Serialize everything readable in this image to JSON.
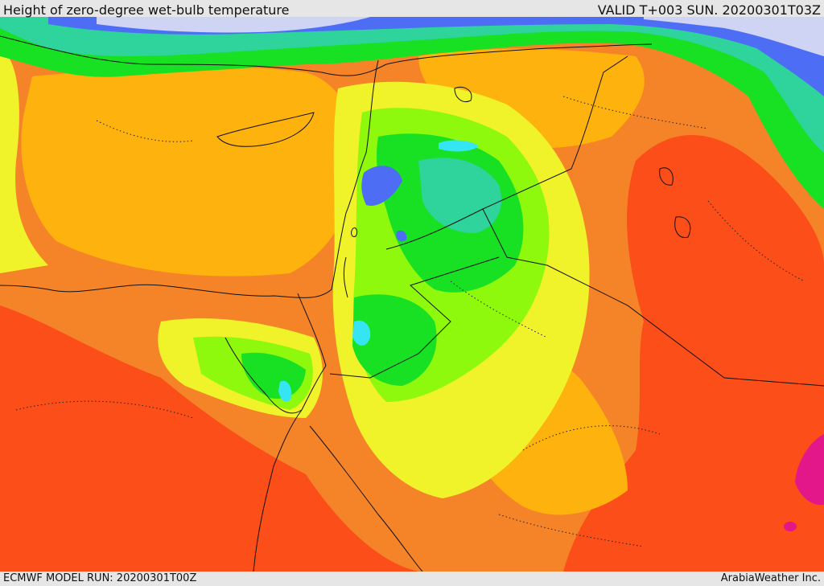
{
  "header": {
    "title": "Height of zero-degree wet-bulb temperature",
    "valid": "VALID T+003 SUN. 20200301T03Z"
  },
  "footer": {
    "model_run": "ECMWF MODEL RUN: 20200301T00Z",
    "credit": "ArabiaWeather Inc."
  },
  "colors": {
    "very_high": "#fb4e18",
    "high": "#f58428",
    "mid_high": "#fdb20d",
    "mid": "#f0f22a",
    "mid_low": "#8ef90c",
    "low": "#18e022",
    "lower": "#2fd39c",
    "cyan": "#35e5f4",
    "blue": "#4d6df5",
    "lowest": "#cfd3f4",
    "extreme": "#e3178a"
  }
}
